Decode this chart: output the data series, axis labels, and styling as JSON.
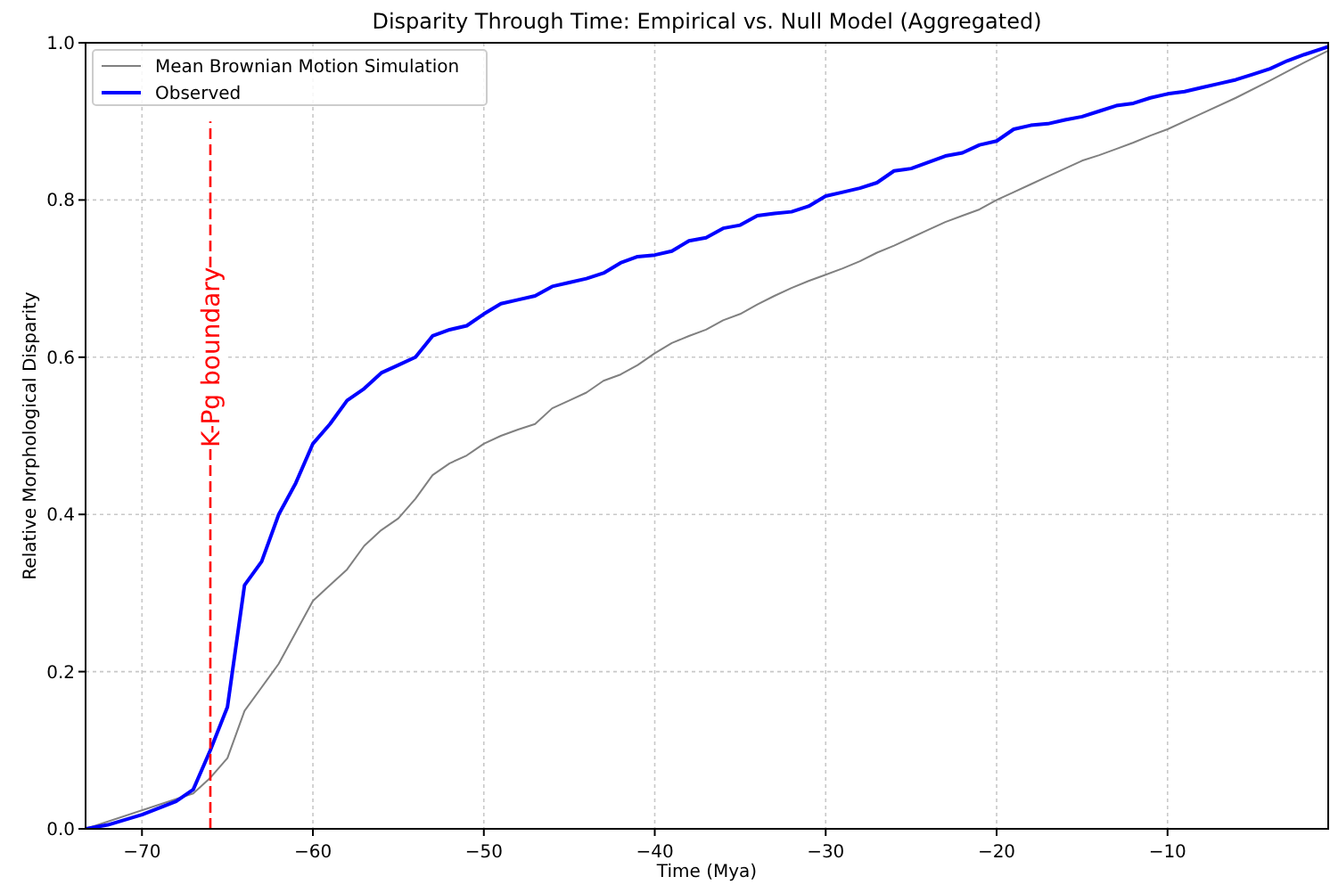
{
  "chart_data": {
    "type": "line",
    "title": "Disparity Through Time: Empirical vs. Null Model (Aggregated)",
    "xlabel": "Time (Mya)",
    "ylabel": "Relative Morphological Disparity",
    "xlim": [
      -73.3,
      -0.6
    ],
    "ylim": [
      0,
      1.0
    ],
    "xticks": [
      {
        "value": -70,
        "label": "−70"
      },
      {
        "value": -60,
        "label": "−60"
      },
      {
        "value": -50,
        "label": "−50"
      },
      {
        "value": -40,
        "label": "−40"
      },
      {
        "value": -30,
        "label": "−30"
      },
      {
        "value": -20,
        "label": "−20"
      },
      {
        "value": -10,
        "label": "−10"
      }
    ],
    "yticks": [
      {
        "value": 0,
        "label": "0.0"
      },
      {
        "value": 0.2,
        "label": "0.2"
      },
      {
        "value": 0.4,
        "label": "0.4"
      },
      {
        "value": 0.6,
        "label": "0.6"
      },
      {
        "value": 0.8,
        "label": "0.8"
      },
      {
        "value": 1.0,
        "label": "1.0"
      }
    ],
    "grid": true,
    "legend": "top left",
    "line_style": "solid",
    "marker": "none",
    "ref_lines": [
      {
        "axis": "x",
        "value": -66,
        "label": "K-Pg boundary",
        "color": "#ff0000",
        "line_style": "dashed"
      }
    ],
    "series": [
      {
        "name": "Mean Brownian Motion Simulation",
        "color": "#808080",
        "x": [
          -73.3,
          -67,
          -66,
          -65,
          -64,
          -63,
          -62,
          -61,
          -60,
          -59,
          -58,
          -57,
          -56,
          -55,
          -54,
          -53,
          -52,
          -51,
          -50,
          -49,
          -48,
          -47,
          -46,
          -45,
          -44,
          -43,
          -42,
          -41,
          -40,
          -39,
          -38,
          -37,
          -36,
          -35,
          -34,
          -33,
          -32,
          -31,
          -30,
          -29,
          -28,
          -27,
          -26,
          -25,
          -24,
          -23,
          -22,
          -21,
          -20,
          -19,
          -18,
          -17,
          -16,
          -15,
          -14,
          -13,
          -12,
          -11,
          -10,
          -8,
          -6,
          -4,
          -2,
          -0.6
        ],
        "values": [
          0,
          0.045,
          0.065,
          0.09,
          0.15,
          0.18,
          0.21,
          0.25,
          0.29,
          0.31,
          0.33,
          0.36,
          0.38,
          0.395,
          0.42,
          0.45,
          0.465,
          0.475,
          0.49,
          0.5,
          0.508,
          0.515,
          0.535,
          0.545,
          0.555,
          0.57,
          0.578,
          0.59,
          0.605,
          0.618,
          0.627,
          0.635,
          0.647,
          0.655,
          0.667,
          0.678,
          0.688,
          0.697,
          0.705,
          0.713,
          0.722,
          0.733,
          0.742,
          0.752,
          0.762,
          0.772,
          0.78,
          0.788,
          0.8,
          0.81,
          0.82,
          0.83,
          0.84,
          0.85,
          0.857,
          0.865,
          0.873,
          0.882,
          0.89,
          0.91,
          0.93,
          0.952,
          0.975,
          0.99
        ]
      },
      {
        "name": "Observed",
        "color": "#0000ff",
        "x": [
          -73.3,
          -72,
          -70,
          -68,
          -67,
          -66,
          -65,
          -64,
          -63,
          -62,
          -61,
          -60,
          -59,
          -58,
          -57,
          -56,
          -55,
          -54,
          -53,
          -52,
          -51,
          -50,
          -49,
          -48,
          -47,
          -46,
          -45,
          -44,
          -43,
          -42,
          -41,
          -40,
          -39,
          -38,
          -37,
          -36,
          -35,
          -34,
          -33,
          -32,
          -31,
          -30,
          -29,
          -28,
          -27,
          -26,
          -25,
          -24,
          -23,
          -22,
          -21,
          -20,
          -19,
          -18,
          -17,
          -16,
          -15,
          -14,
          -13,
          -12,
          -11,
          -10,
          -9,
          -8,
          -7,
          -6,
          -5,
          -4,
          -3,
          -2,
          -0.6
        ],
        "values": [
          0,
          0.005,
          0.018,
          0.035,
          0.05,
          0.1,
          0.155,
          0.31,
          0.34,
          0.4,
          0.44,
          0.49,
          0.515,
          0.545,
          0.56,
          0.58,
          0.59,
          0.6,
          0.627,
          0.635,
          0.64,
          0.655,
          0.668,
          0.673,
          0.678,
          0.69,
          0.695,
          0.7,
          0.707,
          0.72,
          0.728,
          0.73,
          0.735,
          0.748,
          0.752,
          0.764,
          0.768,
          0.78,
          0.783,
          0.785,
          0.792,
          0.805,
          0.81,
          0.815,
          0.822,
          0.837,
          0.84,
          0.848,
          0.856,
          0.86,
          0.87,
          0.875,
          0.89,
          0.895,
          0.897,
          0.902,
          0.906,
          0.913,
          0.92,
          0.923,
          0.93,
          0.935,
          0.938,
          0.943,
          0.948,
          0.953,
          0.96,
          0.967,
          0.977,
          0.985,
          0.995
        ]
      }
    ]
  }
}
